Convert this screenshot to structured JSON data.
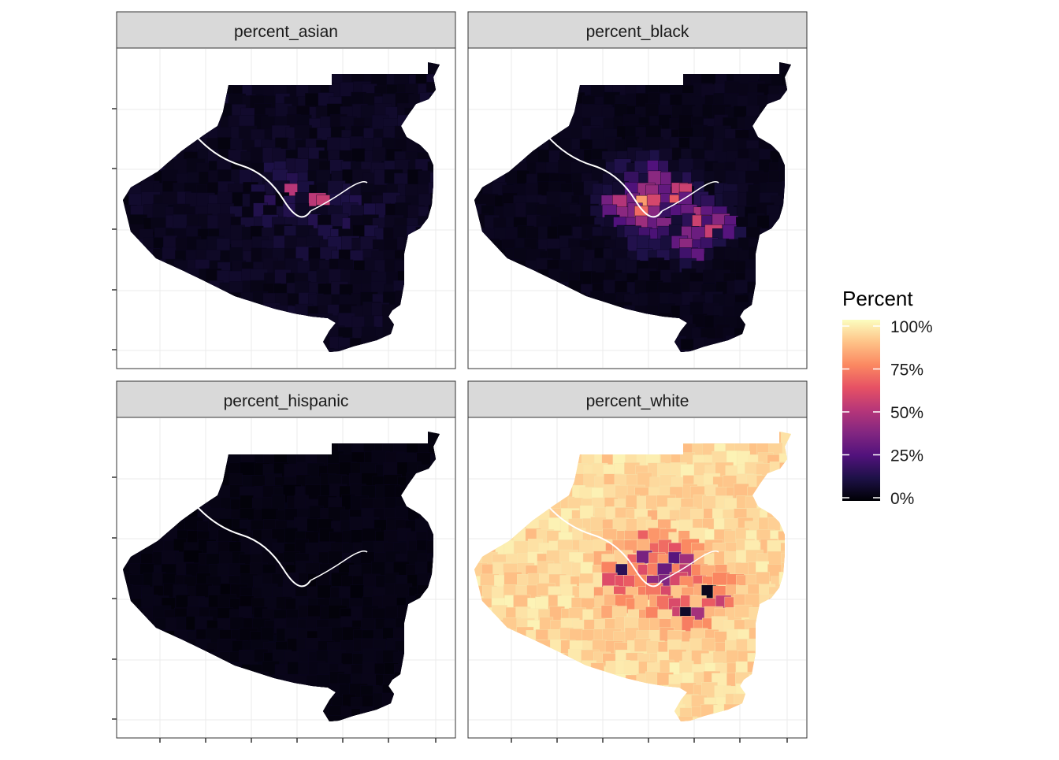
{
  "facets": [
    {
      "key": "asian",
      "label": "percent_asian"
    },
    {
      "key": "black",
      "label": "percent_black"
    },
    {
      "key": "hispanic",
      "label": "percent_hispanic"
    },
    {
      "key": "white",
      "label": "percent_white"
    }
  ],
  "legend": {
    "title": "Percent",
    "ticks": [
      "100%",
      "75%",
      "50%",
      "25%",
      "0%"
    ],
    "palette": [
      "#000004",
      "#1D1147",
      "#51127C",
      "#822681",
      "#B63679",
      "#E65164",
      "#FB8861",
      "#FEC287",
      "#FCFDBF"
    ]
  },
  "colors": {
    "strip_fill": "#d9d9d9",
    "panel_border": "#333333",
    "grid": "#ebebeb",
    "background": "#ffffff"
  }
}
